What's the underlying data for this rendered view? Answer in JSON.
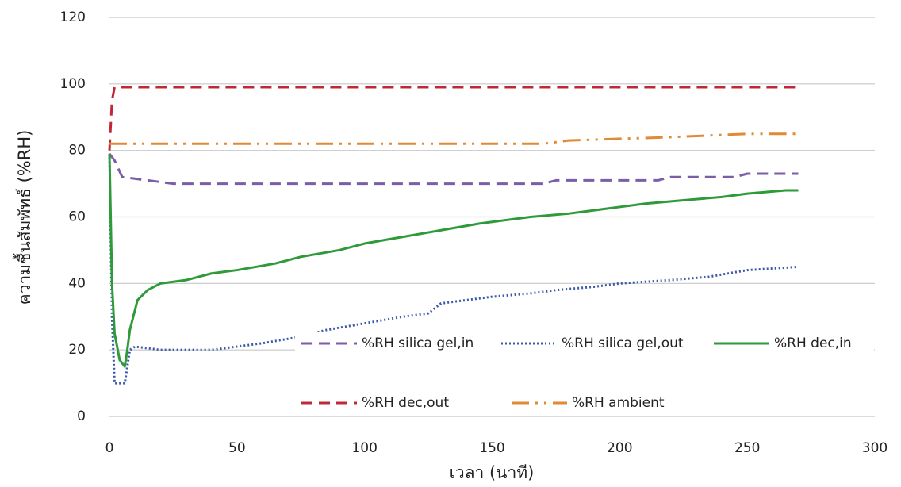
{
  "chart_data": {
    "type": "line",
    "xlabel": "เวลา (นาที)",
    "ylabel": "ความชื้นสัมพัทธ์ (%RH)",
    "xlim": [
      0,
      300
    ],
    "xticks": [
      0,
      50,
      100,
      150,
      200,
      250,
      300
    ],
    "ylim": [
      0,
      120
    ],
    "yticks": [
      0,
      20,
      40,
      60,
      80,
      100,
      120
    ],
    "grid": true,
    "series": [
      {
        "name": "%RH silica gel,in",
        "color": "#7b5ea7",
        "style": "dashed",
        "x": [
          0,
          2,
          5,
          15,
          25,
          170,
          175,
          215,
          220,
          245,
          250,
          270
        ],
        "values": [
          79,
          77,
          72,
          71,
          70,
          70,
          71,
          71,
          72,
          72,
          73,
          73
        ]
      },
      {
        "name": "%RH silica gel,out",
        "color": "#3b5ba9",
        "style": "dotted",
        "x": [
          0,
          1,
          2,
          6,
          8,
          10,
          20,
          40,
          50,
          60,
          75,
          85,
          100,
          115,
          125,
          130,
          140,
          150,
          165,
          175,
          190,
          200,
          220,
          235,
          250,
          270
        ],
        "values": [
          79,
          30,
          10,
          10,
          20,
          21,
          20,
          20,
          21,
          22,
          24,
          26,
          28,
          30,
          31,
          34,
          35,
          36,
          37,
          38,
          39,
          40,
          41,
          42,
          44,
          45
        ]
      },
      {
        "name": "%RH dec,in",
        "color": "#2e9a3a",
        "style": "solid",
        "x": [
          0,
          1,
          2,
          4,
          6,
          7,
          8,
          11,
          15,
          20,
          30,
          40,
          50,
          65,
          75,
          90,
          100,
          115,
          130,
          145,
          165,
          180,
          190,
          200,
          210,
          225,
          240,
          250,
          265,
          270
        ],
        "values": [
          79,
          40,
          25,
          17,
          15,
          20,
          26,
          35,
          38,
          40,
          41,
          43,
          44,
          46,
          48,
          50,
          52,
          54,
          56,
          58,
          60,
          61,
          62,
          63,
          64,
          65,
          66,
          67,
          68,
          68
        ]
      },
      {
        "name": "%RH dec,out",
        "color": "#c0283a",
        "style": "dashed",
        "x": [
          0,
          1,
          2,
          270
        ],
        "values": [
          80,
          95,
          99,
          99
        ]
      },
      {
        "name": "%RH ambient",
        "color": "#e08a35",
        "style": "dashdot",
        "x": [
          0,
          170,
          180,
          220,
          250,
          270
        ],
        "values": [
          82,
          82,
          83,
          84,
          85,
          85
        ]
      }
    ]
  }
}
